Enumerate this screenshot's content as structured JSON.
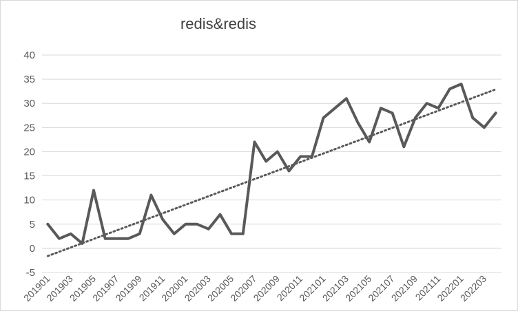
{
  "chart_data": {
    "type": "line",
    "title": "redis&redis",
    "xlabel": "",
    "ylabel": "",
    "ylim": [
      -5,
      40
    ],
    "yticks": [
      -5,
      0,
      5,
      10,
      15,
      20,
      25,
      30,
      35,
      40
    ],
    "grid": true,
    "legend": "none",
    "categories": [
      "201901",
      "201902",
      "201903",
      "201904",
      "201905",
      "201906",
      "201907",
      "201908",
      "201909",
      "201910",
      "201911",
      "201912",
      "202001",
      "202002",
      "202003",
      "202004",
      "202005",
      "202006",
      "202007",
      "202008",
      "202009",
      "202010",
      "202011",
      "202012",
      "202101",
      "202102",
      "202103",
      "202104",
      "202105",
      "202106",
      "202107",
      "202108",
      "202109",
      "202110",
      "202111",
      "202112",
      "202201",
      "202202",
      "202203",
      "202204"
    ],
    "tick_labels": [
      "201901",
      "201903",
      "201905",
      "201907",
      "201909",
      "201911",
      "202001",
      "202003",
      "202005",
      "202007",
      "202009",
      "202011",
      "202101",
      "202103",
      "202105",
      "202107",
      "202109",
      "202111",
      "202201",
      "202203"
    ],
    "series": [
      {
        "values": [
          5,
          2,
          3,
          1,
          12,
          2,
          2,
          2,
          3,
          11,
          6,
          3,
          5,
          5,
          4,
          7,
          3,
          3,
          22,
          18,
          20,
          16,
          19,
          19,
          27,
          29,
          31,
          26,
          22,
          29,
          28,
          21,
          27,
          30,
          29,
          33,
          34,
          27,
          25,
          28
        ],
        "color": "#595959"
      }
    ],
    "trendline": {
      "type": "linear",
      "style": "dotted",
      "color": "#595959",
      "start": -1.6,
      "end": 32.9
    }
  }
}
